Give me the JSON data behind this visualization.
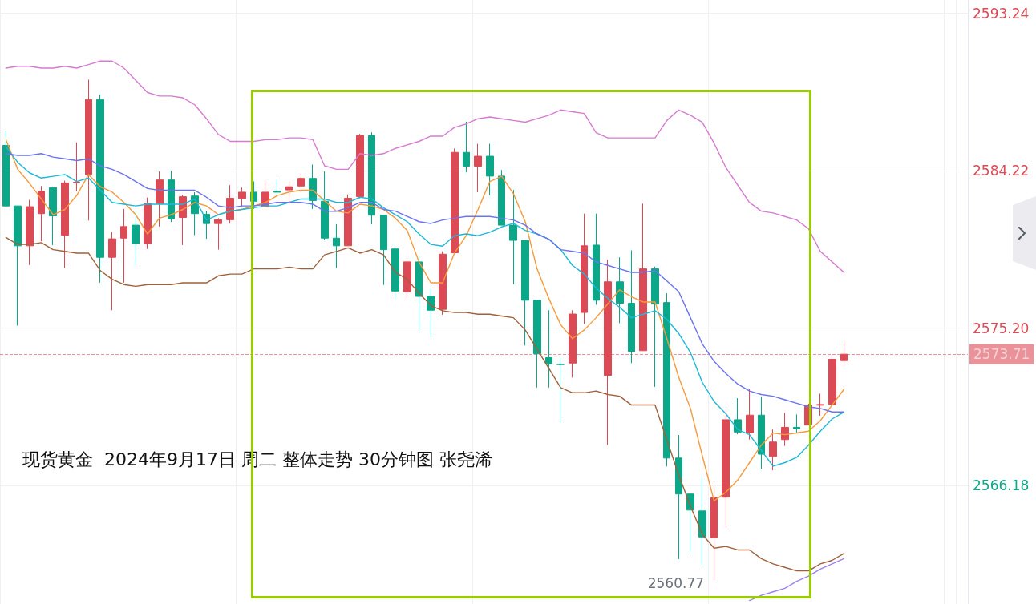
{
  "chart_data": {
    "type": "candlestick",
    "categories": [
      null,
      null,
      null,
      null,
      null,
      null,
      null,
      null,
      null,
      null,
      null,
      null,
      null,
      null,
      null,
      null,
      null,
      null,
      null,
      null,
      null,
      null,
      null,
      null,
      null,
      null,
      null,
      null,
      null,
      null,
      null,
      null,
      null,
      null,
      null,
      null,
      null,
      null,
      null,
      null,
      null,
      null,
      null,
      null,
      null,
      null,
      null,
      null,
      null,
      null,
      null,
      null,
      null,
      null,
      null,
      null,
      null,
      null,
      null,
      null,
      null,
      null,
      null,
      null,
      null,
      null,
      null,
      null,
      null,
      null,
      null,
      null
    ],
    "ohlc": [
      [
        2585.67,
        2586.5,
        2582.16,
        2582.2
      ],
      [
        2582.2,
        2582.2,
        2575.35,
        2579.92
      ],
      [
        2579.92,
        2582.55,
        2578.82,
        2582.16
      ],
      [
        2581.76,
        2583.34,
        2580.18,
        2583.04
      ],
      [
        2583.25,
        2583.3,
        2579.96,
        2581.63
      ],
      [
        2580.53,
        2583.65,
        2578.65,
        2583.52
      ],
      [
        2583.52,
        2585.84,
        2583.04,
        2583.56
      ],
      [
        2584.0,
        2589.44,
        2581.37,
        2588.3
      ],
      [
        2588.3,
        2588.57,
        2577.81,
        2579.26
      ],
      [
        2579.26,
        2580.71,
        2576.23,
        2580.32
      ],
      [
        2580.36,
        2582.03,
        2577.81,
        2581.02
      ],
      [
        2581.1,
        2581.94,
        2578.82,
        2580.05
      ],
      [
        2580.05,
        2582.68,
        2579.74,
        2582.33
      ],
      [
        2582.33,
        2584.18,
        2581.02,
        2583.69
      ],
      [
        2583.69,
        2584.22,
        2581.28,
        2581.46
      ],
      [
        2581.54,
        2582.82,
        2579.96,
        2582.73
      ],
      [
        2582.77,
        2582.99,
        2580.53,
        2581.76
      ],
      [
        2581.72,
        2581.89,
        2580.32,
        2581.19
      ],
      [
        2581.19,
        2581.5,
        2579.7,
        2581.41
      ],
      [
        2581.41,
        2583.39,
        2581.19,
        2582.64
      ],
      [
        2582.64,
        2583.25,
        2582.11,
        2582.99
      ],
      [
        2582.99,
        2583.61,
        2582.03,
        2582.47
      ],
      [
        2582.16,
        2583.65,
        2582.11,
        2582.99
      ],
      [
        2583.04,
        2583.74,
        2582.77,
        2582.99
      ],
      [
        2583.12,
        2583.61,
        2582.33,
        2583.3
      ],
      [
        2583.34,
        2584.04,
        2582.99,
        2583.78
      ],
      [
        2583.78,
        2584.57,
        2582.03,
        2582.51
      ],
      [
        2582.47,
        2584.18,
        2580.27,
        2580.36
      ],
      [
        2580.36,
        2581.15,
        2578.65,
        2579.92
      ],
      [
        2579.92,
        2582.86,
        2579.92,
        2582.64
      ],
      [
        2582.73,
        2586.33,
        2582.64,
        2586.24
      ],
      [
        2586.24,
        2586.42,
        2581.15,
        2581.67
      ],
      [
        2581.67,
        2581.67,
        2577.68,
        2579.7
      ],
      [
        2579.74,
        2579.92,
        2576.89,
        2577.33
      ],
      [
        2577.29,
        2579.13,
        2576.94,
        2579.0
      ],
      [
        2579.0,
        2579.26,
        2575.05,
        2577.02
      ],
      [
        2577.02,
        2577.51,
        2574.7,
        2576.23
      ],
      [
        2576.28,
        2579.61,
        2575.97,
        2579.44
      ],
      [
        2579.52,
        2585.49,
        2579.52,
        2585.27
      ],
      [
        2585.27,
        2587.03,
        2584.13,
        2584.48
      ],
      [
        2584.48,
        2585.76,
        2582.99,
        2585.05
      ],
      [
        2585.05,
        2585.76,
        2582.82,
        2583.91
      ],
      [
        2583.91,
        2584.26,
        2581.1,
        2581.1
      ],
      [
        2581.1,
        2583.12,
        2577.72,
        2580.23
      ],
      [
        2580.23,
        2580.23,
        2574.21,
        2576.8
      ],
      [
        2576.8,
        2576.8,
        2571.8,
        2573.73
      ],
      [
        2573.51,
        2576.23,
        2571.8,
        2573.16
      ],
      [
        2573.12,
        2573.47,
        2569.82,
        2573.12
      ],
      [
        2573.2,
        2576.23,
        2572.37,
        2576.01
      ],
      [
        2576.1,
        2581.76,
        2575.44,
        2579.92
      ],
      [
        2579.96,
        2581.76,
        2576.54,
        2576.8
      ],
      [
        2572.5,
        2579.13,
        2568.51,
        2577.86
      ],
      [
        2577.86,
        2579.26,
        2575.49,
        2576.63
      ],
      [
        2576.63,
        2579.66,
        2573.2,
        2573.86
      ],
      [
        2573.91,
        2582.33,
        2573.91,
        2578.6
      ],
      [
        2578.6,
        2578.73,
        2571.84,
        2576.58
      ],
      [
        2576.67,
        2577.2,
        2567.28,
        2567.76
      ],
      [
        2567.76,
        2569.08,
        2561.97,
        2565.7
      ],
      [
        2565.7,
        2565.7,
        2562.36,
        2564.78
      ],
      [
        2564.73,
        2566.71,
        2561.62,
        2563.24
      ],
      [
        2563.2,
        2566.14,
        2560.77,
        2565.48
      ],
      [
        2565.52,
        2570.53,
        2563.77,
        2569.96
      ],
      [
        2569.96,
        2571.19,
        2569.12,
        2569.25
      ],
      [
        2569.21,
        2571.71,
        2568.82,
        2570.22
      ],
      [
        2570.22,
        2571.27,
        2567.15,
        2567.98
      ],
      [
        2567.85,
        2569.39,
        2567.06,
        2568.68
      ],
      [
        2568.82,
        2570.35,
        2568.46,
        2569.52
      ],
      [
        2569.52,
        2570.26,
        2569.17,
        2569.43
      ],
      [
        2569.65,
        2570.88,
        2569.65,
        2570.79
      ],
      [
        2570.79,
        2571.45,
        2570.18,
        2570.83
      ],
      [
        2570.83,
        2573.56,
        2570.83,
        2573.42
      ],
      [
        2573.34,
        2574.46,
        2573.07,
        2573.71
      ]
    ],
    "colors": [
      "#0ca789",
      "#0ca789",
      "#dc4a55",
      "#dc4a55",
      "#0ca789",
      "#dc4a55",
      "#dc4a55",
      "#dc4a55",
      "#0ca789",
      "#dc4a55",
      "#dc4a55",
      "#0ca789",
      "#dc4a55",
      "#dc4a55",
      "#0ca789",
      "#dc4a55",
      "#0ca789",
      "#0ca789",
      "#dc4a55",
      "#dc4a55",
      "#dc4a55",
      "#0ca789",
      "#dc4a55",
      "#0ca789",
      "#dc4a55",
      "#dc4a55",
      "#0ca789",
      "#0ca789",
      "#0ca789",
      "#dc4a55",
      "#dc4a55",
      "#0ca789",
      "#0ca789",
      "#0ca789",
      "#dc4a55",
      "#0ca789",
      "#0ca789",
      "#dc4a55",
      "#dc4a55",
      "#0ca789",
      "#dc4a55",
      "#0ca789",
      "#0ca789",
      "#0ca789",
      "#0ca789",
      "#0ca789",
      "#0ca789",
      "#0ca789",
      "#dc4a55",
      "#dc4a55",
      "#0ca789",
      "#dc4a55",
      "#0ca789",
      "#0ca789",
      "#dc4a55",
      "#0ca789",
      "#0ca789",
      "#0ca789",
      "#0ca789",
      "#0ca789",
      "#dc4a55",
      "#dc4a55",
      "#0ca789",
      "#dc4a55",
      "#0ca789",
      "#dc4a55",
      "#dc4a55",
      "#0ca789",
      "#dc4a55",
      "#dc4a55",
      "#dc4a55",
      "#dc4a55"
    ],
    "series": [
      {
        "type": "line",
        "color": "#f59a3c",
        "values": [
          2586.0,
          2584.3,
          2583.5,
          2582.6,
          2581.7,
          2582.0,
          2582.8,
          2584.0,
          2583.3,
          2583.0,
          2582.4,
          2581.7,
          2580.6,
          2581.5,
          2581.7,
          2582.0,
          2582.4,
          2582.2,
          2581.7,
          2581.9,
          2582.0,
          2582.2,
          2582.4,
          2582.8,
          2583.0,
          2583.1,
          2583.1,
          2582.5,
          2581.9,
          2581.8,
          2582.3,
          2582.2,
          2582.0,
          2581.5,
          2580.8,
          2579.0,
          2577.8,
          2577.8,
          2579.5,
          2580.5,
          2582.0,
          2583.6,
          2583.9,
          2582.9,
          2581.3,
          2578.6,
          2576.9,
          2575.4,
          2574.6,
          2575.1,
          2575.8,
          2576.6,
          2577.4,
          2577.0,
          2576.7,
          2576.7,
          2574.6,
          2572.4,
          2570.6,
          2567.9,
          2565.3,
          2565.8,
          2566.5,
          2567.5,
          2568.5,
          2569.2,
          2569.1,
          2569.2,
          2569.3,
          2569.9,
          2570.8,
          2571.7
        ]
      },
      {
        "type": "line",
        "color": "#1cb8d8",
        "values": [
          2585.6,
          2584.7,
          2584.1,
          2583.8,
          2583.9,
          2584.0,
          2583.6,
          2583.8,
          2583.1,
          2582.4,
          2582.3,
          2582.2,
          2582.3,
          2582.3,
          2582.3,
          2582.3,
          2582.6,
          2581.4,
          2581.7,
          2581.9,
          2582.0,
          2582.1,
          2582.2,
          2582.2,
          2582.4,
          2582.6,
          2582.6,
          2582.6,
          2582.4,
          2582.4,
          2582.7,
          2582.6,
          2582.1,
          2581.7,
          2581.3,
          2580.6,
          2580.0,
          2579.9,
          2580.5,
          2580.6,
          2580.5,
          2580.7,
          2581.0,
          2581.2,
          2580.8,
          2580.6,
          2580.3,
          2579.7,
          2578.8,
          2578.3,
          2577.5,
          2576.9,
          2576.4,
          2575.8,
          2576.0,
          2576.2,
          2575.7,
          2574.9,
          2573.8,
          2572.1,
          2571.0,
          2570.3,
          2569.4,
          2569.1,
          2568.2,
          2567.3,
          2567.5,
          2567.8,
          2568.5,
          2569.3,
          2570.0,
          2570.4
        ]
      },
      {
        "type": "line",
        "color": "#6a73f0",
        "values": [
          2585.2,
          2585.1,
          2585.1,
          2585.2,
          2585.0,
          2584.9,
          2584.8,
          2584.9,
          2584.5,
          2584.3,
          2584.0,
          2583.6,
          2583.2,
          2583.1,
          2583.1,
          2583.1,
          2583.1,
          2582.7,
          2582.2,
          2582.1,
          2582.2,
          2582.2,
          2582.3,
          2582.4,
          2582.4,
          2582.4,
          2582.3,
          2581.9,
          2581.9,
          2582.1,
          2582.4,
          2582.4,
          2582.0,
          2581.9,
          2581.6,
          2581.3,
          2581.2,
          2581.4,
          2581.5,
          2581.6,
          2581.6,
          2581.6,
          2581.5,
          2581.4,
          2581.1,
          2580.6,
          2580.3,
          2579.7,
          2579.6,
          2579.5,
          2579.0,
          2578.8,
          2578.6,
          2578.4,
          2578.4,
          2578.5,
          2577.9,
          2577.3,
          2575.8,
          2574.3,
          2573.3,
          2572.6,
          2572.0,
          2571.6,
          2571.4,
          2571.3,
          2571.1,
          2570.9,
          2570.7,
          2570.6,
          2570.4,
          2570.4
        ]
      },
      {
        "type": "line",
        "color": "#d77bd0",
        "values": [
          2590.1,
          2590.2,
          2590.2,
          2590.1,
          2590.1,
          2590.2,
          2590.1,
          2590.3,
          2590.5,
          2590.5,
          2590.1,
          2589.4,
          2588.7,
          2588.5,
          2588.5,
          2588.4,
          2588.0,
          2587.2,
          2586.3,
          2585.9,
          2585.9,
          2585.9,
          2586.0,
          2586.0,
          2586.1,
          2586.1,
          2586.0,
          2584.5,
          2584.3,
          2584.3,
          2585.2,
          2585.1,
          2585.2,
          2585.5,
          2585.7,
          2585.9,
          2586.2,
          2586.2,
          2586.7,
          2586.9,
          2587.2,
          2587.3,
          2587.2,
          2587.1,
          2587.0,
          2587.2,
          2587.4,
          2587.7,
          2587.6,
          2587.5,
          2586.4,
          2586.1,
          2586.1,
          2586.1,
          2586.1,
          2586.1,
          2587.1,
          2587.7,
          2587.4,
          2587.0,
          2585.8,
          2584.4,
          2583.4,
          2582.4,
          2581.9,
          2581.8,
          2581.6,
          2581.4,
          2580.9,
          2579.6,
          2579.0,
          2578.4
        ]
      },
      {
        "type": "line",
        "color": "#a0603a",
        "values": [
          2580.4,
          2580.0,
          2580.0,
          2580.1,
          2579.7,
          2579.6,
          2579.5,
          2579.5,
          2578.5,
          2578.0,
          2577.7,
          2577.6,
          2577.7,
          2577.7,
          2577.7,
          2577.8,
          2577.8,
          2577.8,
          2578.2,
          2578.3,
          2578.3,
          2578.6,
          2578.6,
          2578.6,
          2578.7,
          2578.6,
          2578.6,
          2579.4,
          2579.6,
          2579.8,
          2579.5,
          2579.7,
          2579.4,
          2578.4,
          2578.0,
          2577.2,
          2576.5,
          2576.2,
          2576.1,
          2576.1,
          2576.0,
          2576.0,
          2575.9,
          2575.8,
          2575.1,
          2574.0,
          2572.9,
          2571.8,
          2571.5,
          2571.5,
          2571.6,
          2571.4,
          2571.3,
          2570.8,
          2570.8,
          2570.8,
          2568.8,
          2566.8,
          2565.0,
          2563.4,
          2562.6,
          2562.7,
          2562.5,
          2562.5,
          2562.0,
          2561.7,
          2561.5,
          2561.3,
          2561.3,
          2561.7,
          2561.9,
          2562.3
        ]
      },
      {
        "type": "line",
        "color": "#9d82f0",
        "values": [
          null,
          null,
          null,
          null,
          null,
          null,
          null,
          null,
          null,
          null,
          null,
          null,
          null,
          null,
          null,
          null,
          null,
          null,
          null,
          null,
          null,
          null,
          null,
          null,
          null,
          null,
          null,
          null,
          null,
          null,
          null,
          null,
          null,
          null,
          null,
          null,
          null,
          null,
          null,
          null,
          null,
          null,
          null,
          null,
          null,
          null,
          null,
          null,
          null,
          null,
          null,
          null,
          null,
          null,
          null,
          null,
          null,
          null,
          null,
          null,
          null,
          null,
          null,
          2559.6,
          2559.9,
          2560.1,
          2560.3,
          2560.7,
          2561.0,
          2561.4,
          2561.7,
          2562.0
        ]
      }
    ],
    "ylim": [
      2559.4,
      2594.0
    ],
    "yticks": [
      {
        "value": 2566.18,
        "label": "2566.18"
      },
      {
        "value": 2575.2,
        "label": "2575.20"
      },
      {
        "value": 2584.22,
        "label": "2584.22"
      },
      {
        "value": 2593.24,
        "label": "2593.24"
      }
    ],
    "ref_lines": [
      {
        "axis": "y",
        "value": 2573.71,
        "label": "2573.71",
        "color": "#dc4a55",
        "line_style": "dashed"
      }
    ],
    "annotations": [
      "现货黄金  2024年9月17日 周二 整体走势 30分钟图 张尧浠",
      "2560.77"
    ],
    "grid": true,
    "marker": "none",
    "tick_labels": "y"
  }
}
